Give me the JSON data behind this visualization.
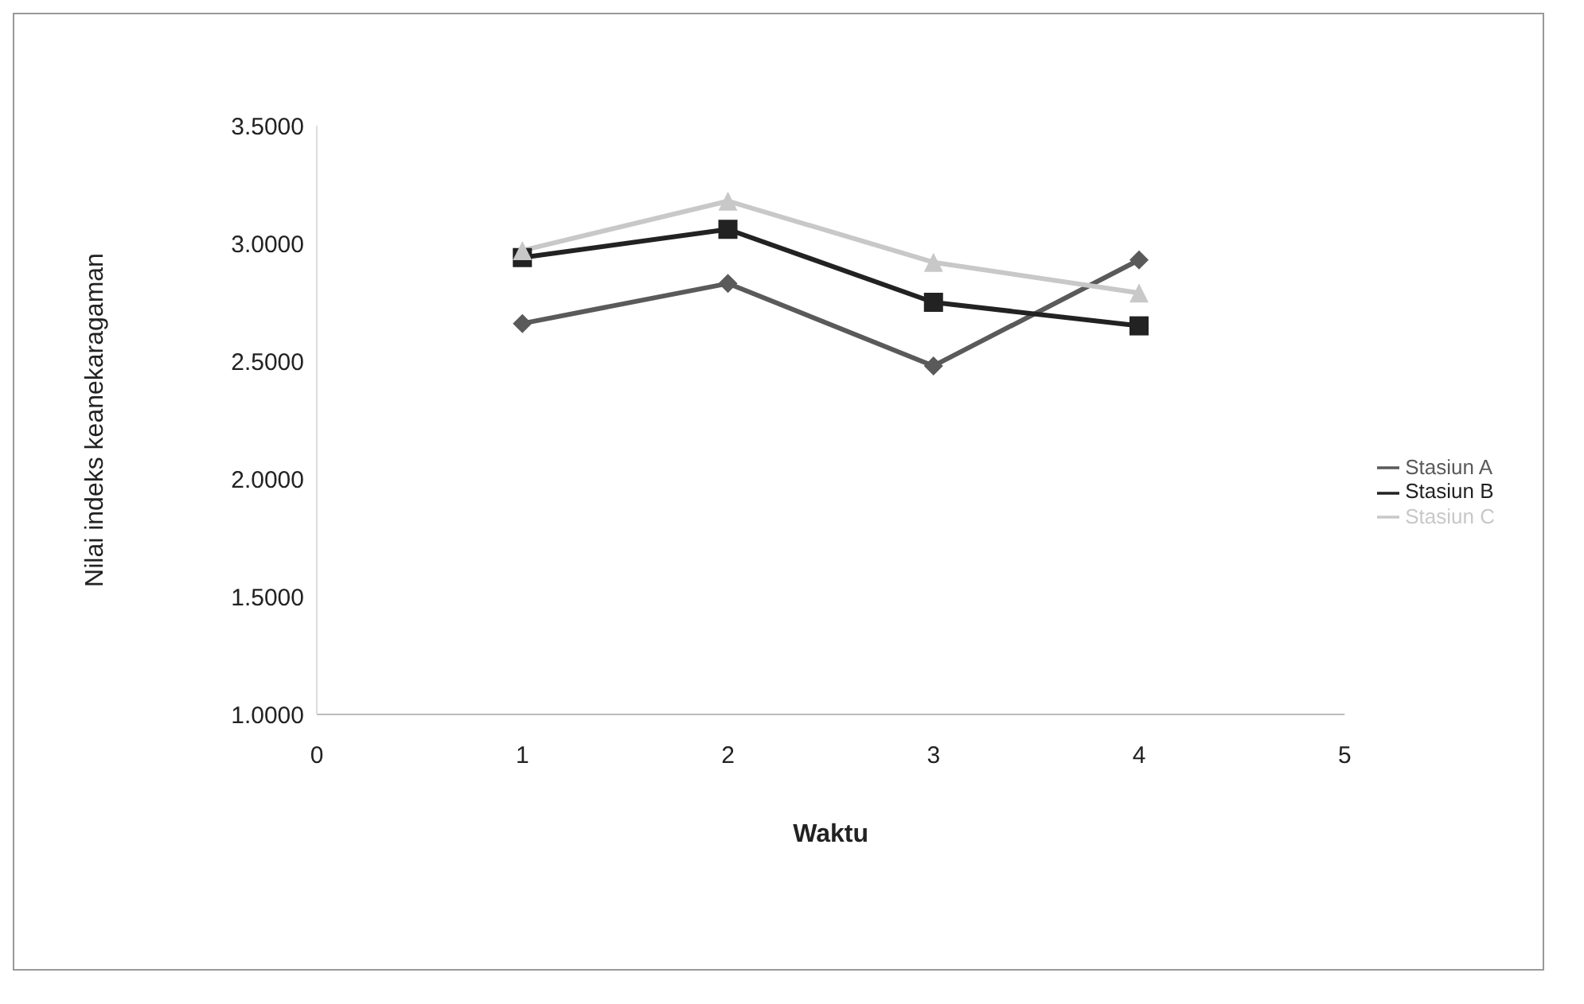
{
  "chart_data": {
    "type": "line",
    "xlabel": "Waktu",
    "ylabel": "Nilai indeks keanekaragaman",
    "xlim": [
      0,
      5
    ],
    "xticks": [
      0,
      1,
      2,
      3,
      4,
      5
    ],
    "ylim": [
      1,
      3.5
    ],
    "yticks": [
      {
        "value": 1,
        "label": "1.0000"
      },
      {
        "value": 1.5,
        "label": "1.5000"
      },
      {
        "value": 2,
        "label": "2.0000"
      },
      {
        "value": 2.5,
        "label": "2.5000"
      },
      {
        "value": 3,
        "label": "3.0000"
      },
      {
        "value": 3.5,
        "label": "3.5000"
      }
    ],
    "x": [
      1,
      2,
      3,
      4
    ],
    "grid": false,
    "legend": "right",
    "series": [
      {
        "name": "Stasiun A",
        "color": "#5a5a5a",
        "marker": "diamond",
        "values": [
          2.66,
          2.83,
          2.48,
          2.93
        ]
      },
      {
        "name": "Stasiun B",
        "color": "#222222",
        "marker": "square",
        "values": [
          2.94,
          3.06,
          2.75,
          2.65
        ]
      },
      {
        "name": "Stasiun C",
        "color": "#c8c8c8",
        "marker": "triangle",
        "values": [
          2.97,
          3.18,
          2.92,
          2.79
        ]
      }
    ]
  }
}
